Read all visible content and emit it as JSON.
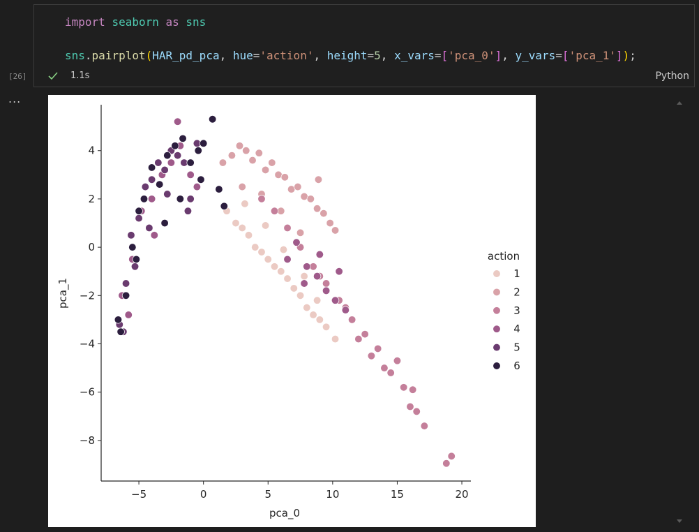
{
  "cell": {
    "execution_count": "[26]",
    "code_lines": [
      [
        {
          "text": "import ",
          "color": "#c586c0"
        },
        {
          "text": "seaborn ",
          "color": "#4ec9b0"
        },
        {
          "text": "as ",
          "color": "#c586c0"
        },
        {
          "text": "sns",
          "color": "#4ec9b0"
        }
      ],
      [],
      [
        {
          "text": "sns",
          "color": "#4ec9b0"
        },
        {
          "text": ".",
          "color": "#d4d4d4"
        },
        {
          "text": "pairplot",
          "color": "#dcdcaa"
        },
        {
          "text": "(",
          "color": "#ffd700"
        },
        {
          "text": "HAR_pd_pca",
          "color": "#9cdcfe"
        },
        {
          "text": ", ",
          "color": "#d4d4d4"
        },
        {
          "text": "hue",
          "color": "#9cdcfe"
        },
        {
          "text": "=",
          "color": "#d4d4d4"
        },
        {
          "text": "'action'",
          "color": "#ce9178"
        },
        {
          "text": ", ",
          "color": "#d4d4d4"
        },
        {
          "text": "height",
          "color": "#9cdcfe"
        },
        {
          "text": "=",
          "color": "#d4d4d4"
        },
        {
          "text": "5",
          "color": "#b5cea8"
        },
        {
          "text": ", ",
          "color": "#d4d4d4"
        },
        {
          "text": "x_vars",
          "color": "#9cdcfe"
        },
        {
          "text": "=",
          "color": "#d4d4d4"
        },
        {
          "text": "[",
          "color": "#da70d6"
        },
        {
          "text": "'pca_0'",
          "color": "#ce9178"
        },
        {
          "text": "]",
          "color": "#da70d6"
        },
        {
          "text": ", ",
          "color": "#d4d4d4"
        },
        {
          "text": "y_vars",
          "color": "#9cdcfe"
        },
        {
          "text": "=",
          "color": "#d4d4d4"
        },
        {
          "text": "[",
          "color": "#da70d6"
        },
        {
          "text": "'pca_1'",
          "color": "#ce9178"
        },
        {
          "text": "]",
          "color": "#da70d6"
        },
        {
          "text": ")",
          "color": "#ffd700"
        },
        {
          "text": ";",
          "color": "#d4d4d4"
        }
      ]
    ],
    "duration": "1.1s",
    "language": "Python",
    "output_marker": "..."
  },
  "chart_data": {
    "type": "scatter",
    "x_label": "pca_0",
    "y_label": "pca_1",
    "legend_title": "action",
    "legend": "right",
    "xlim": [
      -7.92,
      20.7
    ],
    "ylim": [
      -9.68,
      5.9
    ],
    "xticks": [
      {
        "value": -5,
        "label": "−5"
      },
      0,
      5,
      10,
      15,
      20
    ],
    "yticks": [
      {
        "value": -8,
        "label": "−8"
      },
      {
        "value": -6,
        "label": "−6"
      },
      {
        "value": -4,
        "label": "−4"
      },
      {
        "value": -2,
        "label": "−2"
      },
      0,
      2,
      4
    ],
    "series": [
      {
        "name": "1",
        "color": "#ebcac3",
        "x": [
          1.8,
          2.5,
          3.0,
          3.5,
          4.0,
          4.5,
          5.0,
          5.5,
          6.0,
          6.5,
          7.0,
          7.5,
          8.0,
          8.5,
          9.0,
          9.5,
          3.2,
          4.8,
          6.2,
          7.8,
          8.8,
          10.2
        ],
        "values": [
          1.5,
          1.0,
          0.8,
          0.5,
          0.0,
          -0.2,
          -0.5,
          -0.8,
          -1.0,
          -1.3,
          -1.7,
          -2.0,
          -2.5,
          -2.8,
          -3.0,
          -3.3,
          1.8,
          0.9,
          -0.1,
          -1.2,
          -2.2,
          -3.8
        ]
      },
      {
        "name": "2",
        "color": "#d9a2a8",
        "x": [
          1.5,
          2.2,
          2.8,
          3.3,
          3.8,
          4.3,
          4.8,
          5.3,
          5.8,
          6.3,
          6.8,
          7.3,
          7.8,
          8.3,
          8.8,
          9.3,
          9.8,
          10.2,
          3.0,
          4.5,
          6.0,
          7.5,
          8.9
        ],
        "values": [
          3.5,
          3.8,
          4.2,
          4.0,
          3.6,
          3.9,
          3.2,
          3.5,
          3.0,
          2.9,
          2.4,
          2.5,
          2.1,
          2.0,
          1.6,
          1.4,
          1.0,
          0.7,
          2.5,
          2.2,
          1.5,
          0.6,
          2.8
        ]
      },
      {
        "name": "3",
        "color": "#c47f9a",
        "x": [
          4.5,
          5.5,
          6.5,
          7.5,
          8.5,
          9.5,
          10.5,
          11.5,
          12.5,
          13.0,
          13.5,
          14.0,
          14.5,
          15.0,
          15.5,
          16.0,
          16.2,
          16.5,
          17.1,
          18.8,
          19.2,
          11.0,
          12.0,
          9.0
        ],
        "values": [
          2.0,
          1.5,
          0.8,
          0.0,
          -0.8,
          -1.5,
          -2.2,
          -3.0,
          -3.6,
          -4.5,
          -4.2,
          -5.0,
          -5.2,
          -4.7,
          -5.8,
          -6.6,
          -5.9,
          -6.8,
          -7.4,
          -8.95,
          -8.65,
          -2.5,
          -3.8,
          -1.2
        ]
      },
      {
        "name": "4",
        "color": "#9f5a8a",
        "x": [
          -6.3,
          -5.5,
          -4.8,
          -4.0,
          -3.2,
          -2.5,
          -1.8,
          -1.0,
          -2.0,
          -0.5,
          -5.8,
          -3.8,
          6.5,
          7.2,
          8.0,
          8.8,
          9.5,
          10.2,
          11.0,
          7.8,
          9.0,
          10.5
        ],
        "values": [
          -2.0,
          -0.5,
          1.5,
          2.0,
          3.0,
          3.5,
          4.2,
          3.0,
          5.2,
          2.5,
          -2.8,
          0.5,
          -0.5,
          0.2,
          -0.8,
          -1.2,
          -1.8,
          -2.2,
          -2.6,
          -1.5,
          -0.3,
          -1.0
        ]
      },
      {
        "name": "5",
        "color": "#6a3b6f",
        "x": [
          -6.5,
          -6.0,
          -5.6,
          -5.0,
          -4.5,
          -4.0,
          -3.5,
          -3.0,
          -2.5,
          -2.0,
          -1.5,
          -1.0,
          -0.5,
          -5.3,
          -4.2,
          -2.8,
          -1.2,
          -6.2
        ],
        "values": [
          -3.2,
          -1.5,
          0.5,
          1.2,
          2.5,
          2.8,
          3.5,
          3.2,
          4.0,
          3.8,
          3.5,
          2.0,
          4.3,
          -0.8,
          0.8,
          2.2,
          1.5,
          -3.5
        ]
      },
      {
        "name": "6",
        "color": "#2c1e3e",
        "x": [
          -6.4,
          -6.0,
          -5.5,
          -5.0,
          -4.6,
          -4.0,
          -3.4,
          -2.8,
          -2.2,
          -1.6,
          -1.0,
          -0.4,
          0.0,
          0.7,
          -0.2,
          1.6,
          1.2,
          -6.6,
          -3.0,
          -1.8,
          -5.2
        ],
        "values": [
          -3.5,
          -2.0,
          0.0,
          1.5,
          2.0,
          3.3,
          2.6,
          3.8,
          4.2,
          4.5,
          3.5,
          4.0,
          4.3,
          5.3,
          2.8,
          1.7,
          2.4,
          -3.0,
          1.0,
          2.0,
          -0.5
        ]
      }
    ]
  }
}
